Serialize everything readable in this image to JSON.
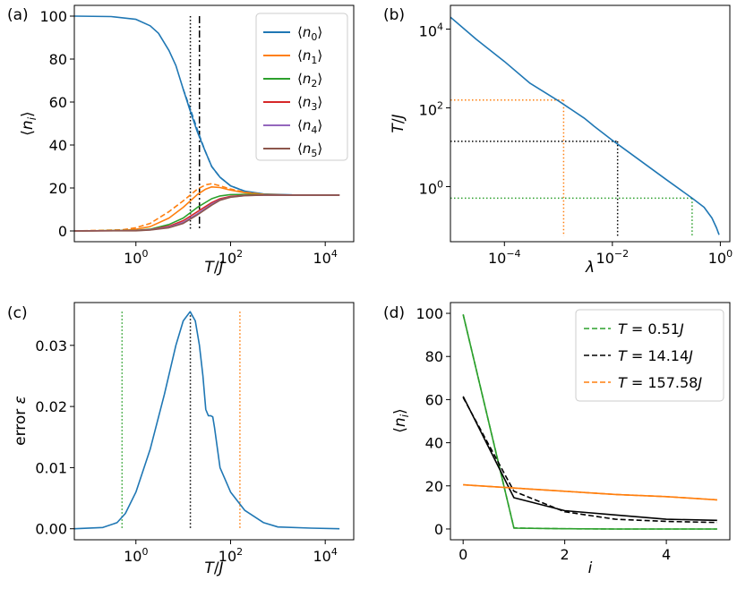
{
  "colors": {
    "C0": "#1f77b4",
    "C1": "#ff7f0e",
    "C2": "#2ca02c",
    "C3": "#d62728",
    "C4": "#9467bd",
    "C5": "#8c564b",
    "black": "#000000"
  },
  "chart_data": [
    {
      "panel": "(a)",
      "type": "line",
      "xscale": "log",
      "xlim": [
        0.05,
        40000
      ],
      "ylim": [
        -5,
        105
      ],
      "xlabel": "T/J",
      "ylabel": "⟨n_i⟩",
      "xticks": [
        {
          "value": 1,
          "base": "10",
          "exp": "0"
        },
        {
          "value": 100,
          "base": "10",
          "exp": "2"
        },
        {
          "value": 10000,
          "base": "10",
          "exp": "4"
        }
      ],
      "yticks": [
        0,
        20,
        40,
        60,
        80,
        100
      ],
      "vlines": [
        {
          "x": 14.14,
          "style": "dotted",
          "color": "black"
        },
        {
          "x": 22,
          "style": "dashdot",
          "color": "black"
        }
      ],
      "legend": {
        "position": "upper right",
        "entries": [
          "⟨n0⟩",
          "⟨n1⟩",
          "⟨n2⟩",
          "⟨n3⟩",
          "⟨n4⟩",
          "⟨n5⟩"
        ]
      },
      "series": [
        {
          "name": "⟨n0⟩",
          "color": "C0",
          "style": "solid",
          "x": [
            0.05,
            0.3,
            1,
            2,
            3,
            5,
            7,
            10,
            14,
            20,
            28,
            40,
            60,
            100,
            200,
            500,
            2000,
            20000
          ],
          "y": [
            100,
            99.8,
            98.5,
            95.5,
            92,
            84,
            77,
            66,
            56,
            46,
            38,
            30,
            25,
            21,
            18.5,
            17.2,
            16.8,
            16.7
          ]
        },
        {
          "name": "⟨n0⟩ (approx)",
          "color": "C0",
          "style": "dashed",
          "x": [
            10,
            14,
            20,
            28,
            40,
            60,
            100,
            200
          ],
          "y": [
            66,
            57,
            47,
            38,
            30,
            25,
            21,
            18.5
          ]
        },
        {
          "name": "⟨n1⟩",
          "color": "C1",
          "style": "solid",
          "x": [
            0.05,
            0.5,
            1,
            2,
            5,
            10,
            20,
            30,
            40,
            60,
            100,
            200,
            500,
            2000,
            20000
          ],
          "y": [
            0,
            0.2,
            0.8,
            2,
            6,
            11,
            17,
            19.5,
            20.5,
            20.2,
            19,
            17.8,
            17,
            16.7,
            16.7
          ]
        },
        {
          "name": "⟨n1⟩ (approx)",
          "color": "C1",
          "style": "dashed",
          "x": [
            0.05,
            0.5,
            1,
            2,
            5,
            10,
            20,
            30,
            40,
            60,
            100,
            200,
            500
          ],
          "y": [
            0,
            0.5,
            1.5,
            3.5,
            9,
            14,
            19.5,
            21.5,
            22,
            21,
            19.5,
            18,
            17
          ]
        },
        {
          "name": "⟨n2⟩",
          "color": "C2",
          "style": "solid",
          "x": [
            0.05,
            1,
            2,
            5,
            10,
            20,
            40,
            60,
            100,
            200,
            500,
            2000,
            20000
          ],
          "y": [
            0,
            0.3,
            0.8,
            3,
            6,
            11,
            15,
            16.3,
            16.9,
            17,
            16.8,
            16.7,
            16.7
          ]
        },
        {
          "name": "⟨n3⟩",
          "color": "C3",
          "style": "solid",
          "x": [
            0.05,
            1,
            2,
            5,
            10,
            20,
            40,
            60,
            100,
            200,
            500,
            2000,
            20000
          ],
          "y": [
            0,
            0.2,
            0.6,
            2.2,
            4.8,
            9,
            13.2,
            15,
            16.1,
            16.6,
            16.7,
            16.7,
            16.7
          ]
        },
        {
          "name": "⟨n4⟩",
          "color": "C4",
          "style": "solid",
          "x": [
            0.05,
            1,
            2,
            5,
            10,
            20,
            40,
            60,
            100,
            200,
            500,
            2000,
            20000
          ],
          "y": [
            0,
            0.15,
            0.5,
            1.8,
            4,
            8,
            12.5,
            14.5,
            15.8,
            16.5,
            16.7,
            16.7,
            16.7
          ]
        },
        {
          "name": "⟨n5⟩",
          "color": "C5",
          "style": "solid",
          "x": [
            0.05,
            1,
            2,
            5,
            10,
            20,
            40,
            60,
            100,
            200,
            500,
            2000,
            20000
          ],
          "y": [
            0,
            0.1,
            0.4,
            1.5,
            3.5,
            7.5,
            12,
            14.3,
            15.7,
            16.4,
            16.7,
            16.7,
            16.7
          ]
        }
      ]
    },
    {
      "panel": "(b)",
      "type": "line",
      "xscale": "log",
      "yscale": "log",
      "xlim": [
        1e-05,
        1.5
      ],
      "ylim": [
        0.04,
        40000
      ],
      "xlabel": "λ",
      "ylabel": "T/J",
      "xticks": [
        {
          "value": 0.0001,
          "base": "10",
          "exp": "−4"
        },
        {
          "value": 0.01,
          "base": "10",
          "exp": "−2"
        },
        {
          "value": 1,
          "base": "10",
          "exp": "0"
        }
      ],
      "yticks": [
        {
          "value": 1,
          "base": "10",
          "exp": "0"
        },
        {
          "value": 100,
          "base": "10",
          "exp": "2"
        },
        {
          "value": 10000,
          "base": "10",
          "exp": "4"
        }
      ],
      "series": [
        {
          "name": "T(λ)",
          "color": "C0",
          "style": "solid",
          "x": [
            1e-05,
            3e-05,
            0.0001,
            0.0003,
            0.001,
            0.003,
            0.004,
            0.0045,
            0.01,
            0.03,
            0.1,
            0.3,
            0.5,
            0.7,
            0.85,
            0.95
          ],
          "y": [
            20000,
            5500,
            1500,
            420,
            150,
            55,
            40,
            35,
            15,
            5,
            1.5,
            0.51,
            0.3,
            0.16,
            0.09,
            0.06
          ]
        }
      ],
      "guides": [
        {
          "lambda": 0.00125,
          "T": 157.58,
          "color": "C1"
        },
        {
          "lambda": 0.0125,
          "T": 14.14,
          "color": "black"
        },
        {
          "lambda": 0.3,
          "T": 0.51,
          "color": "C2"
        }
      ]
    },
    {
      "panel": "(c)",
      "type": "line",
      "xscale": "log",
      "xlim": [
        0.05,
        40000
      ],
      "ylim": [
        -0.0018,
        0.037
      ],
      "xlabel": "T/J",
      "ylabel": "error ε",
      "xticks": [
        {
          "value": 1,
          "base": "10",
          "exp": "0"
        },
        {
          "value": 100,
          "base": "10",
          "exp": "2"
        },
        {
          "value": 10000,
          "base": "10",
          "exp": "4"
        }
      ],
      "yticks": [
        "0.00",
        "0.01",
        "0.02",
        "0.03"
      ],
      "ytick_values": [
        0,
        0.01,
        0.02,
        0.03
      ],
      "vlines": [
        {
          "x": 0.51,
          "style": "dotted",
          "color": "C2",
          "ymax": 0.0355
        },
        {
          "x": 14.14,
          "style": "dotted",
          "color": "black",
          "ymax": 0.0355
        },
        {
          "x": 157.58,
          "style": "dotted",
          "color": "C1",
          "ymax": 0.0355
        }
      ],
      "series": [
        {
          "name": "ε",
          "color": "C0",
          "style": "solid",
          "x": [
            0.05,
            0.2,
            0.4,
            0.6,
            1,
            2,
            4,
            7,
            10,
            14,
            18,
            22,
            26,
            30,
            34,
            38,
            42,
            46,
            60,
            100,
            200,
            500,
            1000,
            5000,
            20000
          ],
          "y": [
            0,
            0.0002,
            0.001,
            0.0025,
            0.006,
            0.013,
            0.022,
            0.03,
            0.034,
            0.0355,
            0.034,
            0.03,
            0.025,
            0.0195,
            0.0185,
            0.0185,
            0.0183,
            0.0165,
            0.01,
            0.006,
            0.003,
            0.001,
            0.0003,
            0.0001,
            0
          ]
        }
      ]
    },
    {
      "panel": "(d)",
      "type": "line",
      "xlim": [
        -0.25,
        5.25
      ],
      "ylim": [
        -5,
        105
      ],
      "xlabel": "i",
      "ylabel": "⟨n_i⟩",
      "xticks": [
        0,
        2,
        4
      ],
      "yticks": [
        0,
        20,
        40,
        60,
        80,
        100
      ],
      "legend": {
        "position": "upper right",
        "entries": [
          "T = 0.51J",
          "T = 14.14J",
          "T = 157.58J"
        ]
      },
      "x": [
        0,
        1,
        2,
        3,
        4,
        5
      ],
      "series": [
        {
          "name": "T = 0.51J",
          "color": "C2",
          "style": "solid",
          "values": [
            99.5,
            0.4,
            0.1,
            0.0,
            0.0,
            0.0
          ]
        },
        {
          "name": "T = 0.51J (dashed)",
          "color": "C2",
          "style": "dashed",
          "values": [
            99.5,
            0.5,
            0.1,
            0.0,
            0.0,
            0.0
          ]
        },
        {
          "name": "T = 14.14J",
          "color": "black",
          "style": "solid",
          "values": [
            61.5,
            14.5,
            8.5,
            6.5,
            4.5,
            4.0
          ]
        },
        {
          "name": "T = 14.14J (dashed)",
          "color": "black",
          "style": "dashed",
          "values": [
            61.0,
            17.5,
            8.0,
            4.5,
            3.5,
            3.0
          ]
        },
        {
          "name": "T = 157.58J",
          "color": "C1",
          "style": "solid",
          "values": [
            20.5,
            19.0,
            17.5,
            16.0,
            15.0,
            13.5
          ]
        },
        {
          "name": "T = 157.58J (dashed)",
          "color": "C1",
          "style": "dashed",
          "values": [
            20.5,
            19.0,
            17.5,
            16.0,
            15.0,
            13.5
          ]
        }
      ]
    }
  ]
}
